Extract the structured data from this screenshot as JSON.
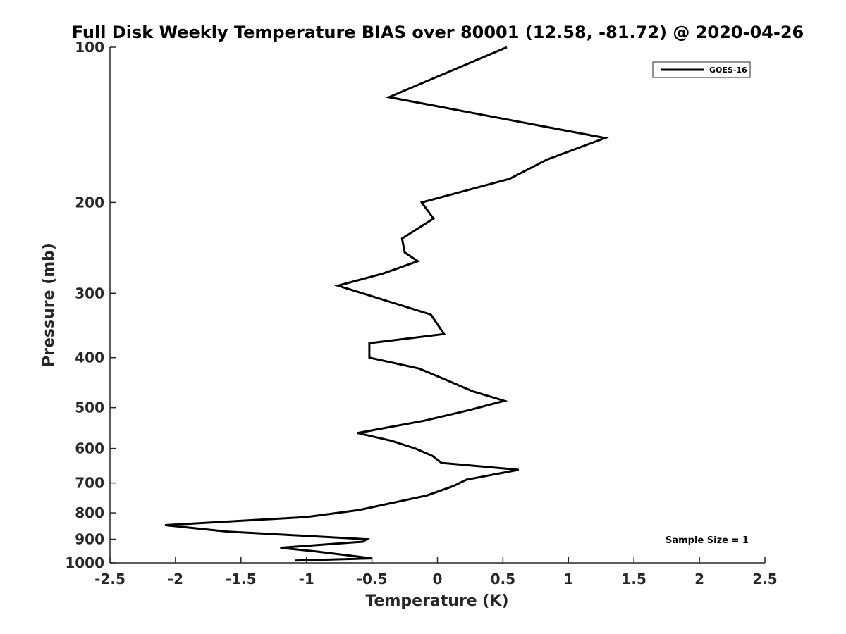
{
  "chart_data": {
    "type": "line",
    "title": "Full Disk Weekly Temperature BIAS over 80001 (12.58, -81.72) @ 2020-04-26",
    "xlabel": "Temperature (K)",
    "ylabel": "Pressure (mb)",
    "xlim": [
      -2.5,
      2.5
    ],
    "ylim": [
      100,
      1000
    ],
    "y_scale": "log",
    "y_reversed": true,
    "grid": false,
    "x_ticks": [
      -2.5,
      -2,
      -1.5,
      -1,
      -0.5,
      0,
      0.5,
      1,
      1.5,
      2,
      2.5
    ],
    "x_tick_labels": [
      "-2.5",
      "-2",
      "-1.5",
      "-1",
      "-0.5",
      "0",
      "0.5",
      "1",
      "1.5",
      "2",
      "2.5"
    ],
    "y_ticks": [
      100,
      200,
      300,
      400,
      500,
      600,
      700,
      800,
      900,
      1000
    ],
    "y_tick_labels": [
      "100",
      "200",
      "300",
      "400",
      "500",
      "600",
      "700",
      "800",
      "900",
      "1000"
    ],
    "legend": {
      "position": "top-right",
      "entries": [
        "GOES-16"
      ]
    },
    "annotation": "Sample Size = 1",
    "line_color": "#000000",
    "series": [
      {
        "name": "GOES-16",
        "x": [
          0.53,
          -0.37,
          1.28,
          0.84,
          0.55,
          -0.12,
          -0.03,
          -0.27,
          -0.25,
          -0.15,
          -0.42,
          -0.76,
          -0.05,
          0.05,
          -0.52,
          -0.52,
          -0.14,
          0.05,
          0.27,
          0.51,
          0.25,
          -0.1,
          -0.61,
          -0.35,
          -0.17,
          -0.04,
          0.03,
          0.62,
          0.22,
          0.12,
          -0.08,
          -0.6,
          -1.0,
          -2.08,
          -1.6,
          -0.54,
          -0.57,
          -1.2,
          -0.93,
          -0.5,
          -1.09
        ],
        "y": [
          100,
          125,
          150,
          165,
          180,
          200,
          215,
          235,
          250,
          260,
          275,
          290,
          330,
          360,
          375,
          400,
          420,
          440,
          465,
          485,
          505,
          530,
          560,
          580,
          600,
          620,
          640,
          660,
          690,
          710,
          740,
          790,
          815,
          845,
          870,
          900,
          910,
          935,
          950,
          980,
          990
        ]
      }
    ]
  }
}
